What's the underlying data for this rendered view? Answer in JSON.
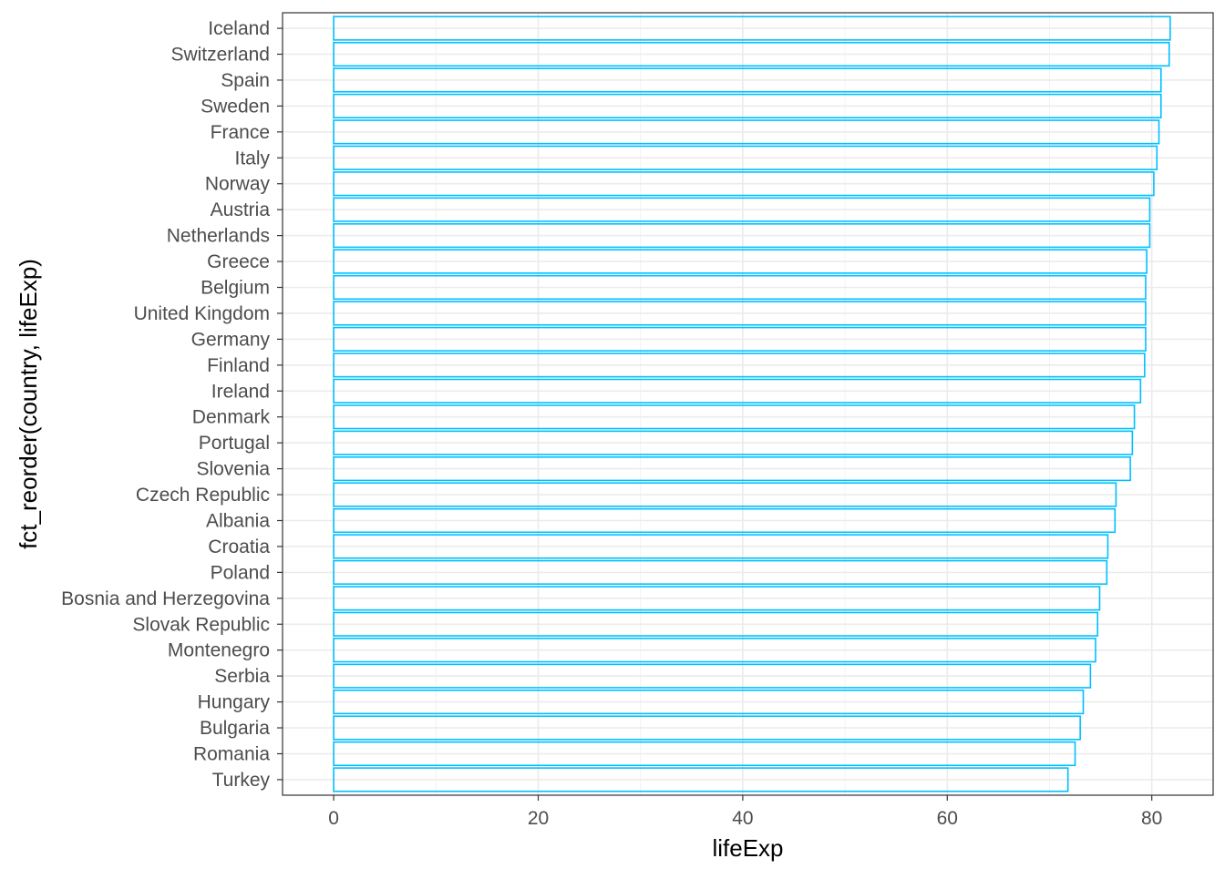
{
  "chart_data": {
    "type": "bar",
    "orientation": "horizontal",
    "xlabel": "lifeExp",
    "ylabel": "fct_reorder(country, lifeExp)",
    "xlim": [
      -5,
      86
    ],
    "xticks": [
      0,
      20,
      40,
      60,
      80
    ],
    "x_tick_labels": [
      "0",
      "20",
      "40",
      "60",
      "80"
    ],
    "grid": true,
    "bar_fill": "none",
    "bar_outline_color": "#00bfff",
    "categories": [
      "Iceland",
      "Switzerland",
      "Spain",
      "Sweden",
      "France",
      "Italy",
      "Norway",
      "Austria",
      "Netherlands",
      "Greece",
      "Belgium",
      "United Kingdom",
      "Germany",
      "Finland",
      "Ireland",
      "Denmark",
      "Portugal",
      "Slovenia",
      "Czech Republic",
      "Albania",
      "Croatia",
      "Poland",
      "Bosnia and Herzegovina",
      "Slovak Republic",
      "Montenegro",
      "Serbia",
      "Hungary",
      "Bulgaria",
      "Romania",
      "Turkey"
    ],
    "values": [
      81.8,
      81.7,
      80.9,
      80.9,
      80.7,
      80.5,
      80.2,
      79.8,
      79.8,
      79.5,
      79.4,
      79.4,
      79.4,
      79.3,
      78.9,
      78.3,
      78.1,
      77.9,
      76.5,
      76.4,
      75.7,
      75.6,
      74.9,
      74.7,
      74.5,
      74.0,
      73.3,
      73.0,
      72.5,
      71.8
    ]
  }
}
